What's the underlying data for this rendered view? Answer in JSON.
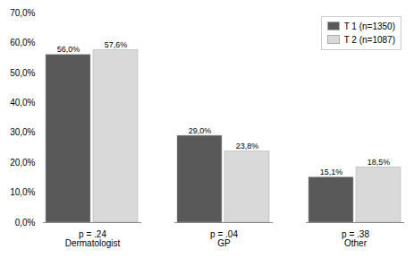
{
  "chart_data": {
    "type": "bar",
    "categories": [
      "p = .24\nDermatologist",
      "p = .04\nGP",
      "p = .38\nOther"
    ],
    "series": [
      {
        "name": "T 1  (n=1350)",
        "color": "#595959",
        "values": [
          56.0,
          29.0,
          15.1
        ],
        "value_labels": [
          "56,0%",
          "29,0%",
          "15,1%"
        ]
      },
      {
        "name": "T 2  (n=1087)",
        "color": "#d9d9d9",
        "values": [
          57.6,
          23.8,
          18.5
        ],
        "value_labels": [
          "57,6%",
          "23,8%",
          "18,5%"
        ]
      }
    ],
    "ylim": [
      0,
      70
    ],
    "yticks": [
      {
        "value": 0,
        "label": "0,0%"
      },
      {
        "value": 10,
        "label": "10,0%"
      },
      {
        "value": 20,
        "label": "20,0%"
      },
      {
        "value": 30,
        "label": "30,0%"
      },
      {
        "value": 40,
        "label": "40,0%"
      },
      {
        "value": 50,
        "label": "50,0%"
      },
      {
        "value": 60,
        "label": "60,0%"
      },
      {
        "value": 70,
        "label": "70,0%"
      }
    ],
    "grid": false,
    "legend": "upper right",
    "data_labels": true
  }
}
